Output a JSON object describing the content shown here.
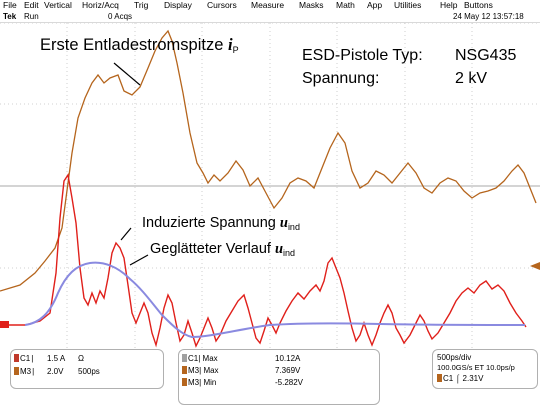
{
  "menu": {
    "items": [
      "File",
      "Edit",
      "Vertical",
      "Horiz/Acq",
      "Trig",
      "Display",
      "Cursors",
      "Measure",
      "Masks",
      "Math",
      "App",
      "Utilities",
      "Help",
      "Buttons"
    ]
  },
  "status": {
    "brand": "Tek",
    "run": "Run",
    "acqs": "0 Acqs",
    "datetime": "24 May 12 13:57:18"
  },
  "annotations": {
    "peak_label": "Erste Entladestromspitze",
    "peak_symbol": "i",
    "peak_sub": "P",
    "induced_label": "Induzierte Spannung",
    "induced_symbol": "u",
    "induced_sub": "ind",
    "smoothed_label": "Geglätteter Verlauf",
    "smoothed_symbol": "u",
    "smoothed_sub": "ind"
  },
  "info": {
    "gun_label": "ESD-Pistole Typ:",
    "gun_value": "NSG435",
    "voltage_label": "Spannung:",
    "voltage_value": "2 kV"
  },
  "readouts": {
    "c1_label": "C1",
    "c1_scale": "1.5 A",
    "c1_unit": "Ω",
    "m3_label": "M3",
    "m3_scale": "2.0V",
    "m3_time": "500ps",
    "meas_c1": "C1",
    "meas_c1_kind": "Max",
    "meas_c1_val": "10.12A",
    "meas_m3a": "M3",
    "meas_m3a_kind": "Max",
    "meas_m3a_val": "7.369V",
    "meas_m3b": "M3",
    "meas_m3b_kind": "Min",
    "meas_m3b_val": "-5.282V",
    "timebase": "500ps/div",
    "samplerate": "100.0GS/s ET 10.0ps/p",
    "trig_src": "C1",
    "trig_val": "2.31V"
  },
  "colors": {
    "background": "#ffffff",
    "grid": "#c8c8c8",
    "current_trace": "#b5651d",
    "induced_trace": "#e0201b",
    "smoothed_trace": "#8a8ae0"
  }
}
